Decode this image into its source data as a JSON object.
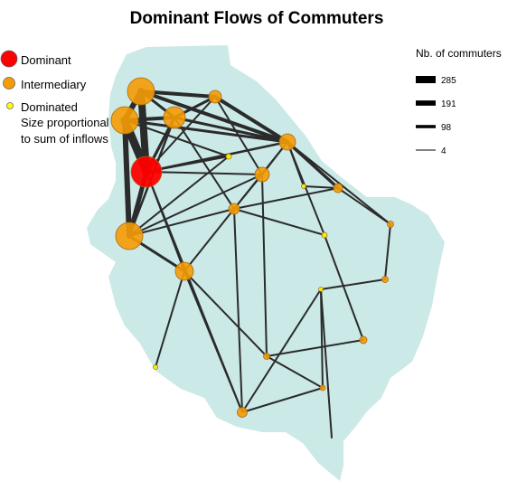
{
  "title": "Dominant Flows of Commuters",
  "colors": {
    "land": "#cbe9e7",
    "flow": "#2b2b2b",
    "dominant": "#ff0000",
    "intermediary": "#f59b06",
    "dominated": "#ffff00",
    "node_stroke": "#a86a10"
  },
  "node_legend": {
    "items": [
      {
        "label": "Dominant",
        "kind": "dominant"
      },
      {
        "label": "Intermediary",
        "kind": "intermediary"
      },
      {
        "label": "Dominated",
        "kind": "dominated"
      }
    ],
    "size_note_line1": "Size proportional",
    "size_note_line2": "to sum of inflows"
  },
  "flow_legend": {
    "title": "Nb. of commuters",
    "items": [
      {
        "label": "285",
        "value": 285
      },
      {
        "label": "191",
        "value": 191
      },
      {
        "label": "98",
        "value": 98
      },
      {
        "label": "4",
        "value": 4
      }
    ]
  }
}
